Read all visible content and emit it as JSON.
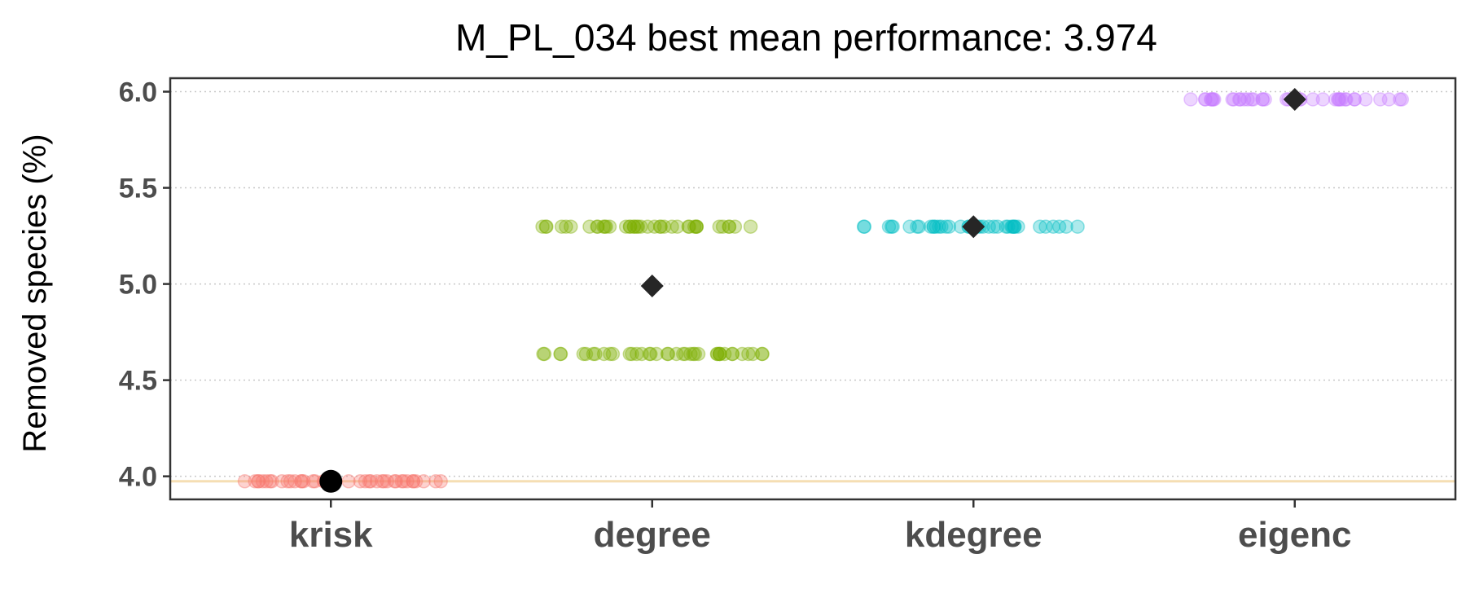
{
  "chart_data": {
    "type": "scatter",
    "title": "M_PL_034 best mean performance: 3.974",
    "xlabel": "",
    "ylabel": "Removed species (%)",
    "categories": [
      "krisk",
      "degree",
      "kdegree",
      "eigenc"
    ],
    "ylim": [
      3.88,
      6.07
    ],
    "yticks": [
      4.0,
      4.5,
      5.0,
      5.5,
      6.0
    ],
    "ytick_labels": [
      "4.0",
      "4.5",
      "5.0",
      "5.5",
      "6.0"
    ],
    "grid": "horizontal-dotted",
    "reference_line": {
      "value": 3.974,
      "color": "#f5deb3"
    },
    "series": [
      {
        "category": "krisk",
        "color": "#f8766d",
        "levels": [
          3.974
        ],
        "mean": 3.974,
        "mean_marker": "circle",
        "mean_color": "#000000"
      },
      {
        "category": "degree",
        "color": "#7cae00",
        "levels": [
          5.298,
          4.636
        ],
        "mean": 4.99,
        "mean_marker": "diamond",
        "mean_color": "#262626"
      },
      {
        "category": "kdegree",
        "color": "#00bfc4",
        "levels": [
          5.298
        ],
        "mean": 5.298,
        "mean_marker": "diamond",
        "mean_color": "#262626"
      },
      {
        "category": "eigenc",
        "color": "#c77cff",
        "levels": [
          5.96
        ],
        "mean": 5.96,
        "mean_marker": "diamond",
        "mean_color": "#262626"
      }
    ]
  }
}
